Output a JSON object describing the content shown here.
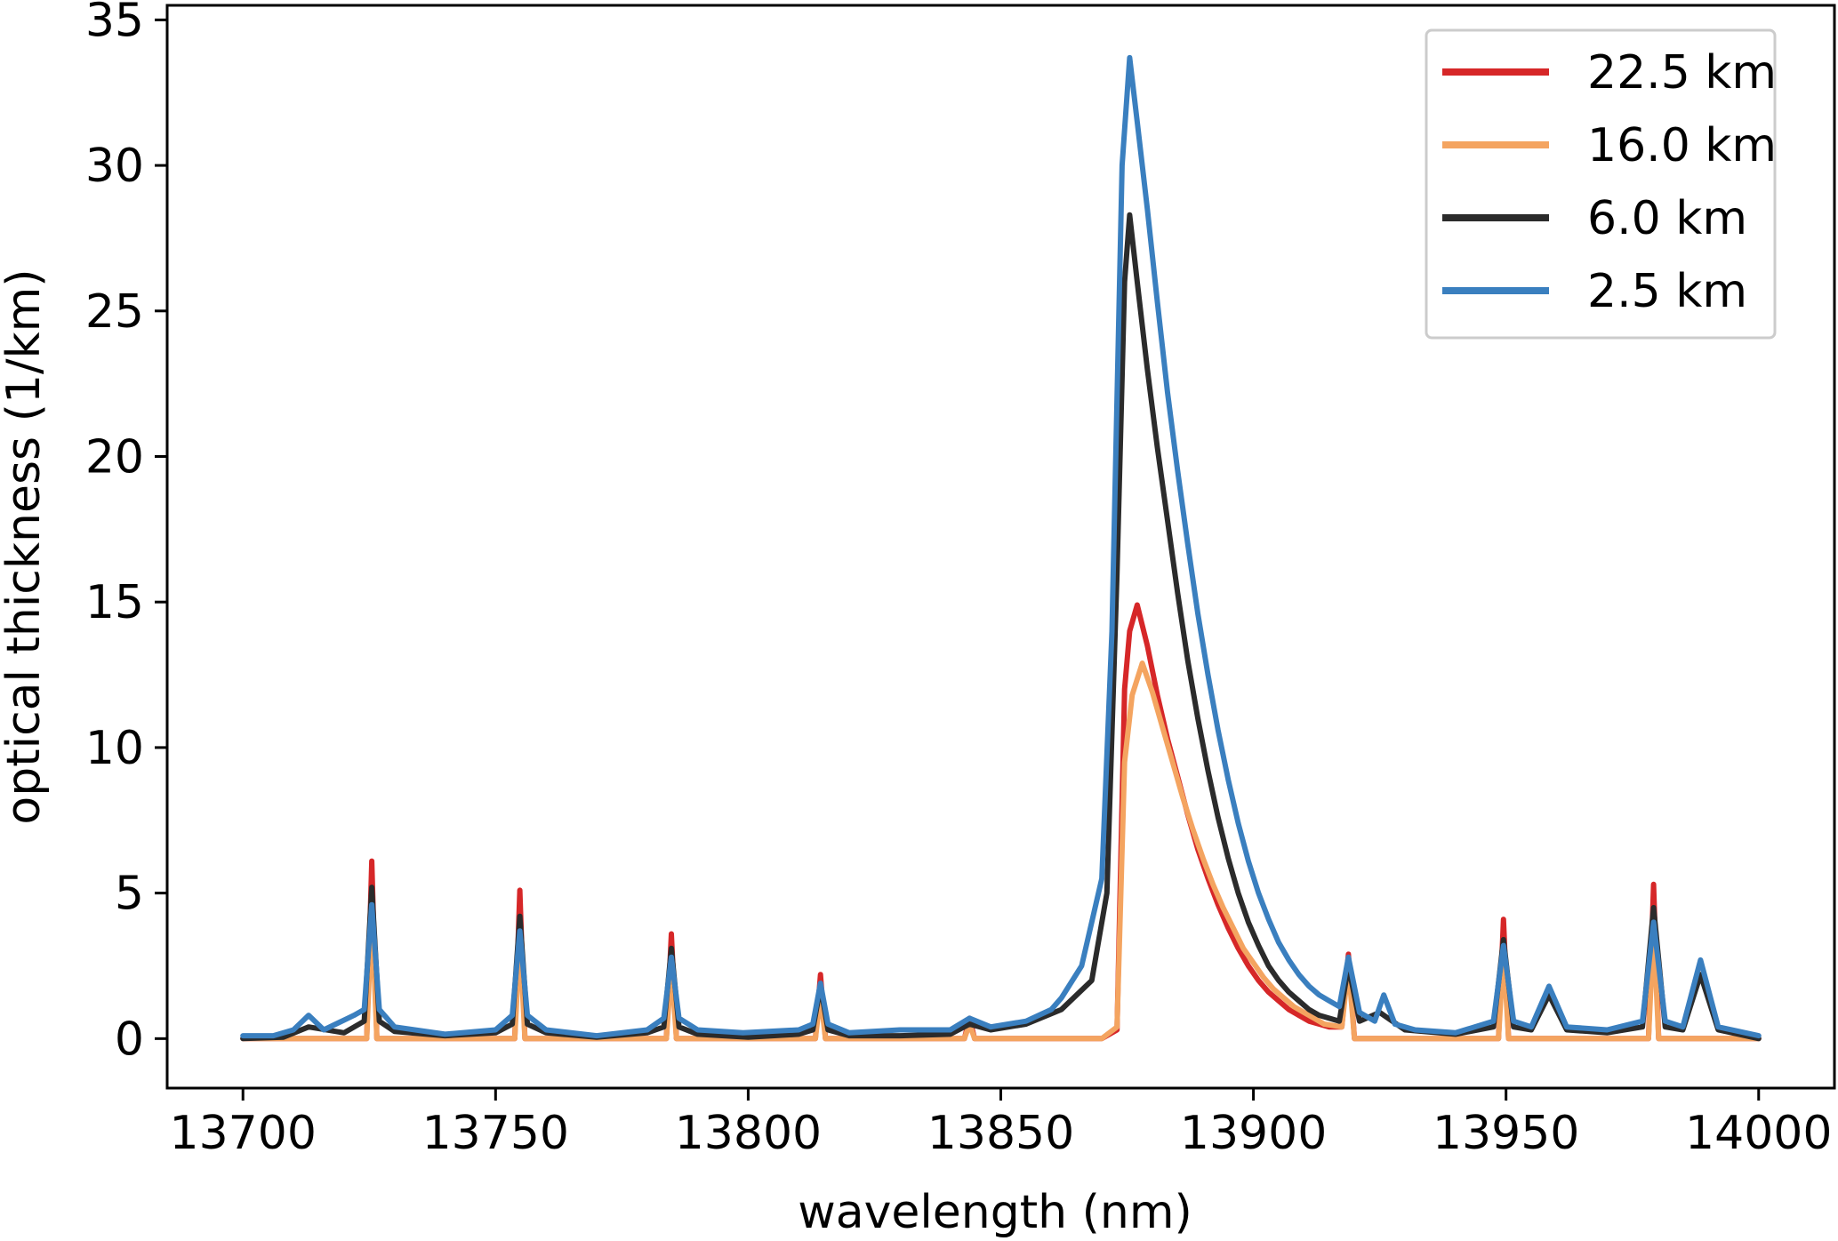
{
  "chart_data": {
    "type": "line",
    "title": "",
    "xlabel": "wavelength (nm)",
    "ylabel": "optical thickness (1/km)",
    "xlim": [
      13685,
      14015
    ],
    "ylim": [
      -1.7,
      35.5
    ],
    "xticks": [
      13700,
      13750,
      13800,
      13850,
      13900,
      13950,
      14000
    ],
    "yticks": [
      0,
      5,
      10,
      15,
      20,
      25,
      30,
      35
    ],
    "grid": false,
    "legend_position": "top-right",
    "series": [
      {
        "name": "22.5 km",
        "color": "#d62728",
        "x": [
          13700,
          13724.5,
          13725.5,
          13726.5,
          13727.5,
          13753.8,
          13754.8,
          13755.8,
          13783.8,
          13784.8,
          13785.8,
          13813.3,
          13814.3,
          13815.3,
          13842.8,
          13843.8,
          13844.8,
          13870,
          13873,
          13874.5,
          13875.5,
          13877,
          13879,
          13881,
          13883,
          13885,
          13887,
          13889,
          13891,
          13893,
          13895,
          13897,
          13899,
          13901,
          13903,
          13905,
          13907,
          13909,
          13911,
          13913,
          13915,
          13917.5,
          13918.8,
          13920,
          13948.5,
          13949.5,
          13950.5,
          13978.2,
          13979.2,
          13980.2,
          14000
        ],
        "y": [
          0,
          0,
          6.1,
          0,
          0,
          0,
          5.1,
          0,
          0,
          3.6,
          0,
          0,
          2.2,
          0,
          0,
          0.7,
          0,
          0,
          0.3,
          12.0,
          14.0,
          14.9,
          13.5,
          11.8,
          10.3,
          9.0,
          7.7,
          6.5,
          5.5,
          4.6,
          3.8,
          3.1,
          2.5,
          2.0,
          1.6,
          1.3,
          1.0,
          0.8,
          0.6,
          0.5,
          0.4,
          0.4,
          2.9,
          0,
          0,
          4.1,
          0,
          0,
          5.3,
          0,
          0
        ]
      },
      {
        "name": "16.0 km",
        "color": "#f4a460",
        "x": [
          13700,
          13724.5,
          13725.5,
          13726.5,
          13727.5,
          13753.8,
          13754.8,
          13755.8,
          13783.8,
          13784.8,
          13785.8,
          13813.3,
          13814.3,
          13815.3,
          13842.8,
          13843.8,
          13844.8,
          13860,
          13870,
          13873,
          13874.5,
          13876,
          13878,
          13880,
          13882,
          13884,
          13886,
          13888,
          13890,
          13892,
          13894,
          13896,
          13898,
          13900,
          13902,
          13904,
          13906,
          13908,
          13910,
          13912,
          13914,
          13917.5,
          13918.8,
          13920,
          13948.5,
          13949.5,
          13950.5,
          13978.2,
          13979.2,
          13980.2,
          14000
        ],
        "y": [
          0,
          0,
          4.4,
          0,
          0,
          0,
          3.5,
          0,
          0,
          2.5,
          0,
          0,
          1.5,
          0,
          0,
          0.5,
          0,
          0,
          0,
          0.4,
          9.5,
          11.8,
          12.9,
          11.9,
          10.7,
          9.5,
          8.3,
          7.2,
          6.2,
          5.3,
          4.5,
          3.8,
          3.1,
          2.6,
          2.1,
          1.7,
          1.4,
          1.1,
          0.9,
          0.7,
          0.5,
          0.4,
          2.5,
          0,
          0,
          3.0,
          0,
          0,
          3.8,
          0,
          0
        ]
      },
      {
        "name": "6.0 km",
        "color": "#2b2b2b",
        "x": [
          13700,
          13708,
          13713,
          13720,
          13724,
          13725.5,
          13727,
          13730,
          13740,
          13750,
          13753.3,
          13754.8,
          13756.3,
          13760,
          13770,
          13780,
          13783.3,
          13784.8,
          13786.3,
          13790,
          13800,
          13810,
          13812.8,
          13814.3,
          13815.8,
          13820,
          13830,
          13840,
          13843.8,
          13848,
          13855,
          13862,
          13868,
          13871,
          13873,
          13874.5,
          13875.5,
          13877,
          13879,
          13881,
          13883,
          13885,
          13887,
          13889,
          13891,
          13893,
          13895,
          13897,
          13899,
          13901,
          13903,
          13905,
          13907,
          13909,
          13911,
          13913,
          13915,
          13917,
          13918.8,
          13921,
          13925,
          13930,
          13940,
          13947.5,
          13949.5,
          13951.5,
          13955,
          13958.5,
          13962,
          13970,
          13977,
          13979.2,
          13981.5,
          13985,
          13988.5,
          13992,
          14000
        ],
        "y": [
          0,
          0.05,
          0.4,
          0.2,
          0.6,
          5.2,
          0.6,
          0.25,
          0.1,
          0.2,
          0.5,
          4.2,
          0.5,
          0.2,
          0.05,
          0.2,
          0.4,
          3.1,
          0.4,
          0.15,
          0.05,
          0.15,
          0.3,
          1.8,
          0.3,
          0.1,
          0.1,
          0.15,
          0.5,
          0.3,
          0.5,
          1.0,
          2.0,
          5.0,
          16.0,
          26.0,
          28.3,
          26.0,
          23.0,
          20.3,
          17.8,
          15.3,
          13.0,
          11.0,
          9.2,
          7.6,
          6.2,
          5.0,
          4.0,
          3.2,
          2.5,
          2.0,
          1.6,
          1.3,
          1.0,
          0.8,
          0.7,
          0.6,
          2.5,
          0.6,
          0.9,
          0.3,
          0.15,
          0.4,
          3.4,
          0.4,
          0.3,
          1.5,
          0.3,
          0.2,
          0.4,
          4.5,
          0.4,
          0.3,
          2.2,
          0.3,
          0
        ]
      },
      {
        "name": "2.5 km",
        "color": "#3a7fbf",
        "x": [
          13700,
          13706,
          13710,
          13713,
          13716,
          13722,
          13724,
          13725.5,
          13727,
          13730,
          13740,
          13750,
          13753.3,
          13754.8,
          13756.3,
          13760,
          13770,
          13780,
          13783.3,
          13784.8,
          13786.3,
          13790,
          13799,
          13810,
          13812.8,
          13814.3,
          13815.8,
          13820,
          13830,
          13840,
          13843.8,
          13848,
          13855,
          13860,
          13862,
          13866,
          13870,
          13872,
          13874,
          13875.5,
          13877,
          13879,
          13881,
          13883,
          13885,
          13887,
          13889,
          13891,
          13893,
          13895,
          13897,
          13899,
          13901,
          13903,
          13905,
          13907,
          13909,
          13911,
          13913,
          13915,
          13917,
          13918.8,
          13921,
          13924,
          13925.8,
          13928,
          13932,
          13940,
          13947.5,
          13949.5,
          13951.5,
          13955,
          13958.5,
          13962,
          13970,
          13977,
          13979.2,
          13981.5,
          13985,
          13988.5,
          13992,
          14000
        ],
        "y": [
          0.1,
          0.1,
          0.3,
          0.8,
          0.3,
          0.8,
          1.0,
          4.6,
          1.0,
          0.4,
          0.15,
          0.3,
          0.8,
          3.7,
          0.8,
          0.3,
          0.1,
          0.3,
          0.7,
          2.8,
          0.7,
          0.3,
          0.2,
          0.3,
          0.5,
          1.9,
          0.5,
          0.2,
          0.3,
          0.3,
          0.7,
          0.4,
          0.6,
          1.0,
          1.4,
          2.5,
          5.5,
          14.0,
          30.0,
          33.7,
          31.5,
          28.5,
          25.3,
          22.2,
          19.5,
          17.0,
          14.6,
          12.5,
          10.6,
          8.9,
          7.4,
          6.1,
          5.0,
          4.1,
          3.3,
          2.7,
          2.2,
          1.8,
          1.5,
          1.3,
          1.1,
          2.8,
          0.9,
          0.6,
          1.5,
          0.5,
          0.3,
          0.2,
          0.6,
          3.2,
          0.6,
          0.4,
          1.8,
          0.4,
          0.3,
          0.6,
          4.0,
          0.6,
          0.4,
          2.7,
          0.4,
          0.1
        ]
      }
    ]
  }
}
